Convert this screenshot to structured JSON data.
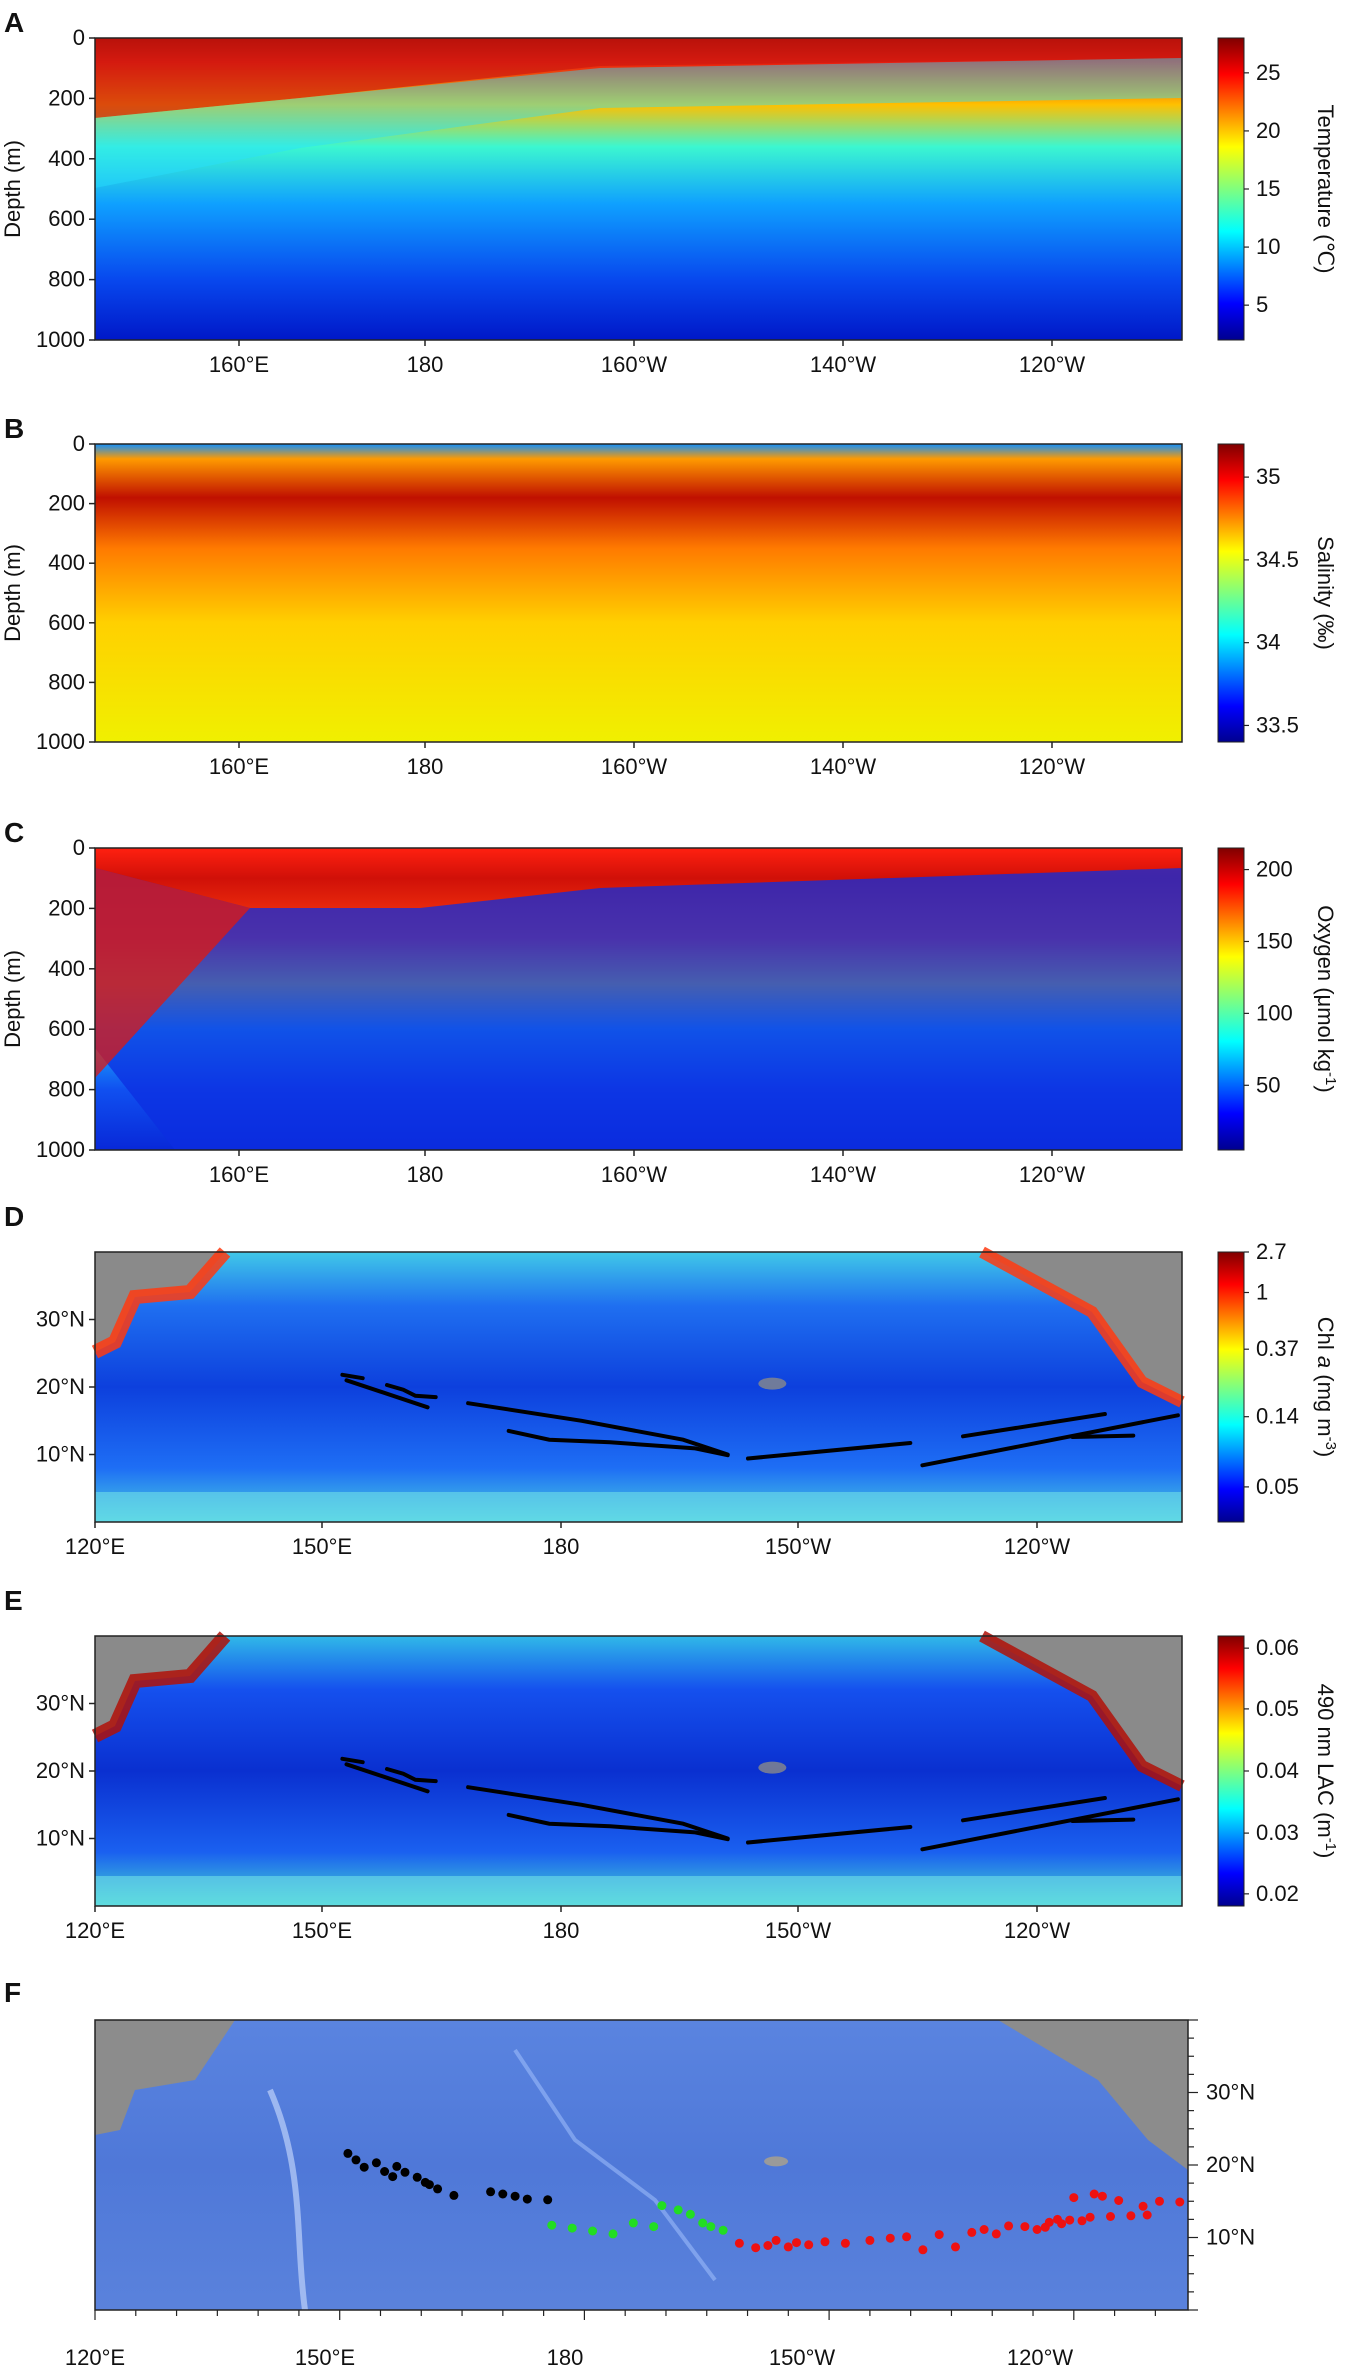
{
  "chart_data": [
    {
      "type": "heatmap",
      "panel_label": "A",
      "ylabel": "Depth (m)",
      "y_ticks": [
        "0",
        "200",
        "400",
        "600",
        "800",
        "1000"
      ],
      "x_ticks": [
        "160°E",
        "180",
        "160°W",
        "140°W",
        "120°W"
      ],
      "ylim": [
        1000,
        0
      ],
      "colorbar": {
        "label": "Temperature (℃)",
        "ticks": [
          "5",
          "10",
          "15",
          "20",
          "25"
        ],
        "range": [
          2,
          28
        ],
        "colormap": "jet"
      }
    },
    {
      "type": "heatmap",
      "panel_label": "B",
      "ylabel": "Depth (m)",
      "y_ticks": [
        "0",
        "200",
        "400",
        "600",
        "800",
        "1000"
      ],
      "x_ticks": [
        "160°E",
        "180",
        "160°W",
        "140°W",
        "120°W"
      ],
      "ylim": [
        1000,
        0
      ],
      "colorbar": {
        "label": "Salinity (‰)",
        "ticks": [
          "35",
          "34.5",
          "34",
          "33.5"
        ],
        "range": [
          33.4,
          35.2
        ],
        "colormap": "jet"
      }
    },
    {
      "type": "heatmap",
      "panel_label": "C",
      "ylabel": "Depth (m)",
      "y_ticks": [
        "0",
        "200",
        "400",
        "600",
        "800",
        "1000"
      ],
      "x_ticks": [
        "160°E",
        "180",
        "160°W",
        "140°W",
        "120°W"
      ],
      "ylim": [
        1000,
        0
      ],
      "colorbar": {
        "label": "Oxygen (μmol kg",
        "label_sup": "-1",
        "label_end": ")",
        "ticks": [
          "200",
          "150",
          "100",
          "50"
        ],
        "range": [
          5,
          215
        ],
        "colormap": "jet"
      }
    },
    {
      "type": "heatmap",
      "panel_label": "D",
      "y_ticks": [
        "30°N",
        "20°N",
        "10°N"
      ],
      "x_ticks": [
        "120°E",
        "150°E",
        "180",
        "150°W",
        "120°W"
      ],
      "colorbar": {
        "label_main": "Chl ",
        "label_italic": "a",
        "label_unit": "  (mg m",
        "label_sup": "-3",
        "label_end": ")",
        "ticks": [
          "2.7",
          "1",
          "0.37",
          "0.14",
          "0.05"
        ],
        "scale": "log",
        "colormap": "jet"
      },
      "transect_lines": "black"
    },
    {
      "type": "heatmap",
      "panel_label": "E",
      "y_ticks": [
        "30°N",
        "20°N",
        "10°N"
      ],
      "x_ticks": [
        "120°E",
        "150°E",
        "180",
        "150°W",
        "120°W"
      ],
      "colorbar": {
        "label": "490 nm LAC (m",
        "label_sup": "-1",
        "label_end": ")",
        "ticks": [
          "0.06",
          "0.05",
          "0.04",
          "0.03",
          "0.02"
        ],
        "range": [
          0.018,
          0.062
        ],
        "colormap": "jet"
      },
      "transect_lines": "black"
    },
    {
      "type": "scatter",
      "panel_label": "F",
      "y_ticks": [
        "30°N",
        "20°N",
        "10°N"
      ],
      "x_ticks": [
        "120°E",
        "150°E",
        "180",
        "150°W",
        "120°W"
      ],
      "series": [
        {
          "color": "#000000",
          "x": [
            151,
            152,
            153,
            154.5,
            155.5,
            156.5,
            157,
            158,
            159.5,
            160.5,
            161,
            162,
            164,
            168.5,
            170,
            171.5,
            173,
            175.5
          ],
          "y": [
            21.6,
            20.7,
            19.7,
            20.3,
            19.1,
            18.4,
            19.8,
            19.0,
            18.3,
            17.6,
            17.3,
            16.7,
            15.8,
            16.3,
            16.0,
            15.7,
            15.3,
            15.2
          ]
        },
        {
          "color": "#22dd22",
          "x": [
            176,
            178.5,
            181,
            183.5,
            186,
            188.5,
            189.5,
            191.5,
            193,
            194.5,
            195.5,
            197
          ],
          "y": [
            11.7,
            11.3,
            10.9,
            10.5,
            12.0,
            11.5,
            14.4,
            13.8,
            13.2,
            12.0,
            11.5,
            11.0
          ]
        },
        {
          "color": "#ee1111",
          "x": [
            199,
            201,
            202.5,
            203.5,
            205,
            206,
            207.5,
            209.5,
            212,
            215,
            217.5,
            219.5,
            221.5,
            223.5,
            225.5,
            227.5,
            229,
            230.5,
            232,
            234,
            235.5,
            236.5,
            237,
            238,
            238.5,
            239.5,
            240,
            241,
            242,
            242.5,
            243.5,
            244.5,
            245.5,
            247,
            248.5,
            249,
            250.5,
            253
          ],
          "y": [
            9.2,
            8.6,
            8.9,
            9.6,
            8.7,
            9.3,
            9.0,
            9.4,
            9.2,
            9.6,
            9.9,
            10.1,
            8.3,
            10.4,
            8.7,
            10.7,
            11.1,
            10.5,
            11.6,
            11.5,
            11.1,
            11.4,
            12.1,
            12.5,
            11.9,
            12.4,
            15.5,
            12.3,
            12.8,
            16.0,
            15.7,
            12.9,
            15.1,
            13.0,
            14.3,
            13.1,
            15.0,
            14.9
          ]
        }
      ]
    }
  ],
  "transects": [
    [
      [
        150.5,
        21.8
      ],
      [
        153,
        21.3
      ]
    ],
    [
      [
        151,
        21.0
      ],
      [
        161,
        17.0
      ]
    ],
    [
      [
        156,
        20.3
      ],
      [
        158,
        19.6
      ],
      [
        159.5,
        18.7
      ],
      [
        162,
        18.5
      ]
    ],
    [
      [
        166,
        17.6
      ],
      [
        180,
        15.0
      ],
      [
        192.5,
        12.2
      ],
      [
        198,
        10.0
      ]
    ],
    [
      [
        171,
        13.5
      ],
      [
        176,
        12.2
      ],
      [
        183.5,
        11.8
      ],
      [
        194,
        10.9
      ],
      [
        198,
        9.9
      ]
    ],
    [
      [
        200.5,
        9.4
      ],
      [
        220.5,
        11.7
      ]
    ],
    [
      [
        222,
        8.4
      ],
      [
        253.5,
        15.8
      ]
    ],
    [
      [
        227,
        12.7
      ],
      [
        244.5,
        16.0
      ]
    ],
    [
      [
        240.5,
        12.6
      ],
      [
        248,
        12.8
      ]
    ]
  ]
}
